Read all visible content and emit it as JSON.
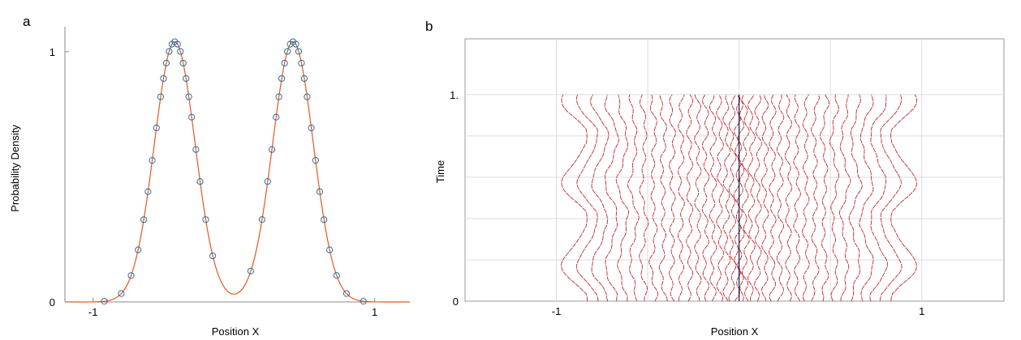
{
  "chart_data": [
    {
      "type": "line",
      "panel_label": "a",
      "xlabel": "Position X",
      "ylabel": "Probability Density",
      "xlim": [
        -1.2,
        1.25
      ],
      "ylim": [
        0,
        1.1
      ],
      "xticks": [
        {
          "value": -1,
          "label": "-1"
        },
        {
          "value": 1,
          "label": "1"
        }
      ],
      "yticks": [
        {
          "value": 0,
          "label": "0"
        },
        {
          "value": 1,
          "label": "1"
        }
      ],
      "grid": false,
      "series": [
        {
          "style": "line",
          "color": "#e05a1e",
          "x_range": [
            -1.2,
            1.25
          ],
          "peaks": [
            -0.42,
            0.42
          ],
          "peak_value": 1.04,
          "width": 0.145
        },
        {
          "style": "markers",
          "marker": "circle",
          "color": "#2f6e9e",
          "x": [
            -0.92,
            -0.8,
            -0.73,
            -0.68,
            -0.64,
            -0.61,
            -0.58,
            -0.55,
            -0.52,
            -0.5,
            -0.48,
            -0.46,
            -0.44,
            -0.42,
            -0.4,
            -0.38,
            -0.36,
            -0.34,
            -0.32,
            -0.3,
            -0.27,
            -0.24,
            -0.2,
            -0.15,
            0.12,
            0.2,
            0.24,
            0.27,
            0.3,
            0.32,
            0.34,
            0.36,
            0.38,
            0.4,
            0.42,
            0.44,
            0.46,
            0.48,
            0.5,
            0.52,
            0.55,
            0.58,
            0.61,
            0.64,
            0.68,
            0.73,
            0.8,
            0.92
          ]
        }
      ]
    },
    {
      "type": "line",
      "panel_label": "b",
      "xlabel": "Position X",
      "ylabel": "Time",
      "xlim": [
        -1.5,
        1.45
      ],
      "ylim": [
        0,
        1.27
      ],
      "xticks": [
        {
          "value": -1,
          "label": "-1"
        },
        {
          "value": 1,
          "label": "1"
        }
      ],
      "yticks": [
        {
          "value": 0,
          "label": "0"
        },
        {
          "value": 1,
          "label": "1."
        }
      ],
      "grid": true,
      "trajectory_count": 38,
      "trajectory_color": "#c0272d",
      "center_line_color": "#1f2a55",
      "time_range": [
        0,
        1
      ]
    }
  ]
}
